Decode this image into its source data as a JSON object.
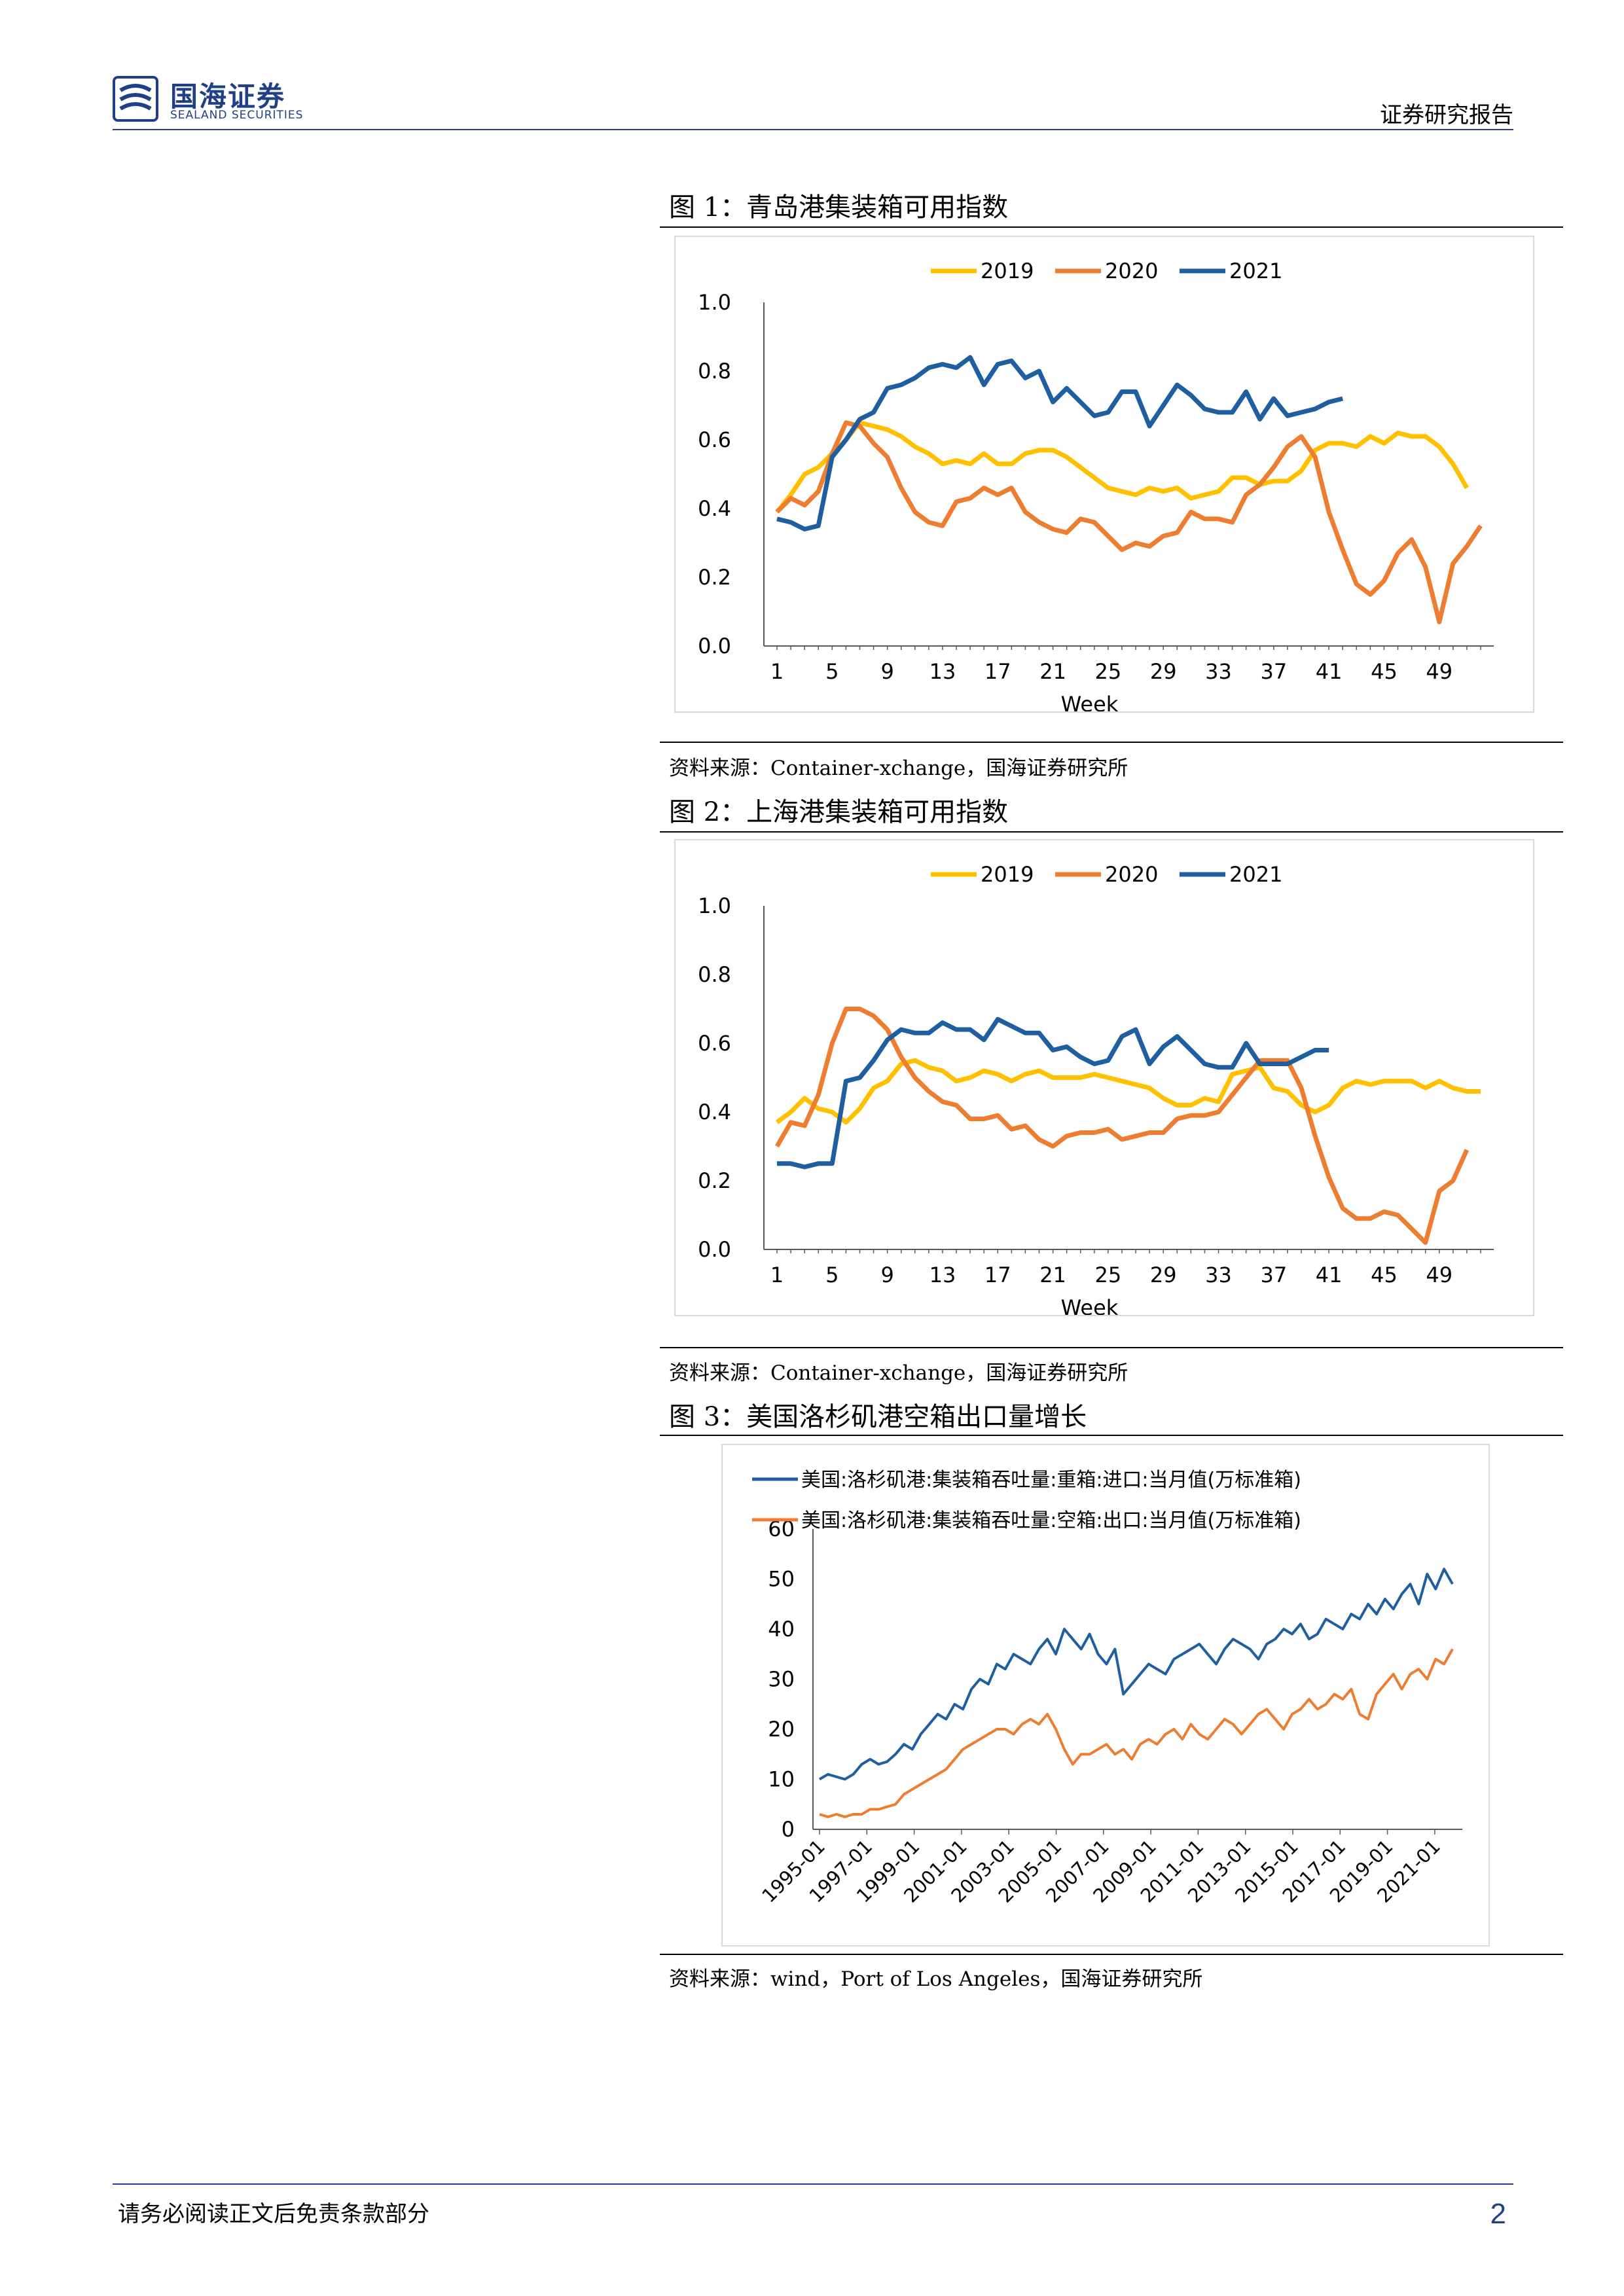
{
  "header": {
    "company_cn": "国海证券",
    "company_en": "SEALAND SECURITIES",
    "report_type": "证券研究报告"
  },
  "figures": [
    {
      "title": "图 1：青岛港集装箱可用指数",
      "source": "资料来源：Container-xchange，国海证券研究所"
    },
    {
      "title": "图 2：上海港集装箱可用指数",
      "source": "资料来源：Container-xchange，国海证券研究所"
    },
    {
      "title": "图 3：美国洛杉矶港空箱出口量增长",
      "source": "资料来源：wind，Port of Los Angeles，国海证券研究所"
    }
  ],
  "footer": {
    "disclaimer": "请务必阅读正文后免责条款部分",
    "page_number": "2"
  },
  "chart_data": [
    {
      "type": "line",
      "title": "青岛港集装箱可用指数",
      "xlabel": "Week",
      "ylabel": "",
      "ylim": [
        0,
        1.0
      ],
      "yticks": [
        "0.0",
        "0.2",
        "0.4",
        "0.6",
        "0.8",
        "1.0"
      ],
      "xticks": [
        "1",
        "5",
        "9",
        "13",
        "17",
        "21",
        "25",
        "29",
        "33",
        "37",
        "41",
        "45",
        "49"
      ],
      "legend_position": "top-center",
      "series": [
        {
          "name": "2019",
          "color": "#FFC000",
          "values": [
            0.39,
            0.44,
            0.5,
            0.52,
            0.56,
            0.6,
            0.65,
            0.64,
            0.63,
            0.61,
            0.58,
            0.56,
            0.53,
            0.54,
            0.53,
            0.56,
            0.53,
            0.53,
            0.56,
            0.57,
            0.57,
            0.55,
            0.52,
            0.49,
            0.46,
            0.45,
            0.44,
            0.46,
            0.45,
            0.46,
            0.43,
            0.44,
            0.45,
            0.49,
            0.49,
            0.47,
            0.48,
            0.48,
            0.51,
            0.57,
            0.59,
            0.59,
            0.58,
            0.61,
            0.59,
            0.62,
            0.61,
            0.61,
            0.58,
            0.53,
            0.46
          ]
        },
        {
          "name": "2020",
          "color": "#ED7D31",
          "values": [
            0.39,
            0.43,
            0.41,
            0.45,
            0.56,
            0.65,
            0.64,
            0.59,
            0.55,
            0.46,
            0.39,
            0.36,
            0.35,
            0.42,
            0.43,
            0.46,
            0.44,
            0.46,
            0.39,
            0.36,
            0.34,
            0.33,
            0.37,
            0.36,
            0.32,
            0.28,
            0.3,
            0.29,
            0.32,
            0.33,
            0.39,
            0.37,
            0.37,
            0.36,
            0.44,
            0.47,
            0.52,
            0.58,
            0.61,
            0.55,
            0.39,
            0.28,
            0.18,
            0.15,
            0.19,
            0.27,
            0.31,
            0.23,
            0.07,
            0.24,
            0.29,
            0.35
          ]
        },
        {
          "name": "2021",
          "color": "#1F5FA0",
          "values": [
            0.37,
            0.36,
            0.34,
            0.35,
            0.55,
            0.6,
            0.66,
            0.68,
            0.75,
            0.76,
            0.78,
            0.81,
            0.82,
            0.81,
            0.84,
            0.76,
            0.82,
            0.83,
            0.78,
            0.8,
            0.71,
            0.75,
            0.71,
            0.67,
            0.68,
            0.74,
            0.74,
            0.64,
            0.7,
            0.76,
            0.73,
            0.69,
            0.68,
            0.68,
            0.74,
            0.66,
            0.72,
            0.67,
            0.68,
            0.69,
            0.71,
            0.72
          ]
        }
      ]
    },
    {
      "type": "line",
      "title": "上海港集装箱可用指数",
      "xlabel": "Week",
      "ylabel": "",
      "ylim": [
        0,
        1.0
      ],
      "yticks": [
        "0.0",
        "0.2",
        "0.4",
        "0.6",
        "0.8",
        "1.0"
      ],
      "xticks": [
        "1",
        "5",
        "9",
        "13",
        "17",
        "21",
        "25",
        "29",
        "33",
        "37",
        "41",
        "45",
        "49"
      ],
      "legend_position": "top-center",
      "series": [
        {
          "name": "2019",
          "color": "#FFC000",
          "values": [
            0.37,
            0.4,
            0.44,
            0.41,
            0.4,
            0.37,
            0.41,
            0.47,
            0.49,
            0.54,
            0.55,
            0.53,
            0.52,
            0.49,
            0.5,
            0.52,
            0.51,
            0.49,
            0.51,
            0.52,
            0.5,
            0.5,
            0.5,
            0.51,
            0.5,
            0.49,
            0.48,
            0.47,
            0.44,
            0.42,
            0.42,
            0.44,
            0.43,
            0.51,
            0.52,
            0.53,
            0.47,
            0.46,
            0.42,
            0.4,
            0.42,
            0.47,
            0.49,
            0.48,
            0.49,
            0.49,
            0.49,
            0.47,
            0.49,
            0.47,
            0.46,
            0.46
          ]
        },
        {
          "name": "2020",
          "color": "#ED7D31",
          "values": [
            0.3,
            0.37,
            0.36,
            0.45,
            0.6,
            0.7,
            0.7,
            0.68,
            0.64,
            0.56,
            0.5,
            0.46,
            0.43,
            0.42,
            0.38,
            0.38,
            0.39,
            0.35,
            0.36,
            0.32,
            0.3,
            0.33,
            0.34,
            0.34,
            0.35,
            0.32,
            0.33,
            0.34,
            0.34,
            0.38,
            0.39,
            0.39,
            0.4,
            0.45,
            0.5,
            0.55,
            0.55,
            0.55,
            0.47,
            0.33,
            0.21,
            0.12,
            0.09,
            0.09,
            0.11,
            0.1,
            0.06,
            0.02,
            0.17,
            0.2,
            0.29
          ]
        },
        {
          "name": "2021",
          "color": "#1F5FA0",
          "values": [
            0.25,
            0.25,
            0.24,
            0.25,
            0.25,
            0.49,
            0.5,
            0.55,
            0.61,
            0.64,
            0.63,
            0.63,
            0.66,
            0.64,
            0.64,
            0.61,
            0.67,
            0.65,
            0.63,
            0.63,
            0.58,
            0.59,
            0.56,
            0.54,
            0.55,
            0.62,
            0.64,
            0.54,
            0.59,
            0.62,
            0.58,
            0.54,
            0.53,
            0.53,
            0.6,
            0.54,
            0.54,
            0.54,
            0.56,
            0.58,
            0.58
          ]
        }
      ]
    },
    {
      "type": "line",
      "title": "美国洛杉矶港空箱出口量增长",
      "xlabel": "",
      "ylabel": "",
      "ylim": [
        0,
        60
      ],
      "yticks": [
        "0",
        "10",
        "20",
        "30",
        "40",
        "50",
        "60"
      ],
      "xticks": [
        "1995-01",
        "1997-01",
        "1999-01",
        "2001-01",
        "2003-01",
        "2005-01",
        "2007-01",
        "2009-01",
        "2011-01",
        "2013-01",
        "2015-01",
        "2017-01",
        "2019-01",
        "2021-01"
      ],
      "x_start": 1995.0,
      "x_end": 2021.75,
      "legend_position": "top",
      "series": [
        {
          "name": "美国:洛杉矶港:集装箱吞吐量:重箱:进口:当月值(万标准箱)",
          "color": "#1F5FA0",
          "values": [
            10,
            11,
            10.5,
            10,
            11,
            13,
            14,
            13,
            13.5,
            15,
            17,
            16,
            19,
            21,
            23,
            22,
            25,
            24,
            28,
            30,
            29,
            33,
            32,
            35,
            34,
            33,
            36,
            38,
            35,
            40,
            38,
            36,
            39,
            35,
            33,
            36,
            27,
            29,
            31,
            33,
            32,
            31,
            34,
            35,
            36,
            37,
            35,
            33,
            36,
            38,
            37,
            36,
            34,
            37,
            38,
            40,
            39,
            41,
            38,
            39,
            42,
            41,
            40,
            43,
            42,
            45,
            43,
            46,
            44,
            47,
            49,
            45,
            51,
            48,
            52,
            49
          ]
        },
        {
          "name": "美国:洛杉矶港:集装箱吞吐量:空箱:出口:当月值(万标准箱)",
          "color": "#ED7D31",
          "values": [
            3,
            2.5,
            3,
            2.5,
            3,
            3,
            4,
            4,
            4.5,
            5,
            7,
            8,
            9,
            10,
            11,
            12,
            14,
            16,
            17,
            18,
            19,
            20,
            20,
            19,
            21,
            22,
            21,
            23,
            20,
            16,
            13,
            15,
            15,
            16,
            17,
            15,
            16,
            14,
            17,
            18,
            17,
            19,
            20,
            18,
            21,
            19,
            18,
            20,
            22,
            21,
            19,
            21,
            23,
            24,
            22,
            20,
            23,
            24,
            26,
            24,
            25,
            27,
            26,
            28,
            23,
            22,
            27,
            29,
            31,
            28,
            31,
            32,
            30,
            34,
            33,
            36
          ]
        }
      ]
    }
  ]
}
